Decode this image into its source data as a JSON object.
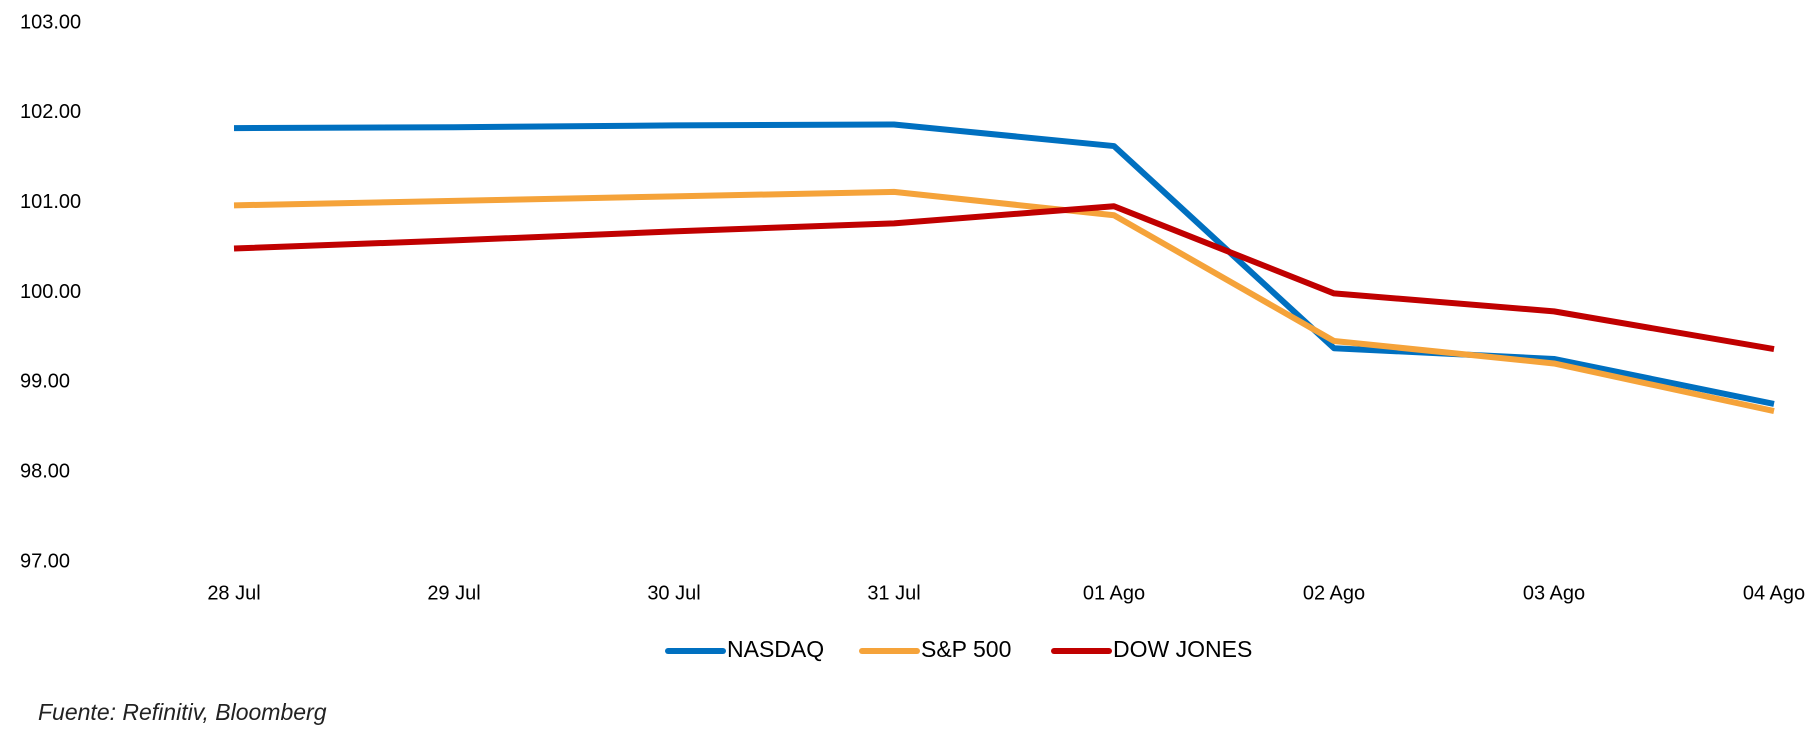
{
  "chart_data": {
    "type": "line",
    "categories": [
      "28 Jul",
      "29 Jul",
      "30 Jul",
      "31 Jul",
      "01 Ago",
      "02 Ago",
      "03 Ago",
      "04 Ago"
    ],
    "series": [
      {
        "name": "NASDAQ",
        "color": "#0070c0",
        "values": [
          101.83,
          101.84,
          101.86,
          101.87,
          101.63,
          99.38,
          99.26,
          98.76
        ]
      },
      {
        "name": "S&P 500",
        "color": "#f5a33a",
        "values": [
          100.97,
          101.02,
          101.07,
          101.12,
          100.86,
          99.46,
          99.21,
          98.68
        ]
      },
      {
        "name": "DOW JONES",
        "color": "#c00000",
        "values": [
          100.49,
          100.58,
          100.68,
          100.77,
          100.96,
          99.99,
          99.79,
          99.37
        ]
      }
    ],
    "ylim": [
      97,
      103
    ],
    "yticks": [
      {
        "value": 97,
        "label": "97.00"
      },
      {
        "value": 98,
        "label": "98.00"
      },
      {
        "value": 99,
        "label": "99.00"
      },
      {
        "value": 100,
        "label": "100.00"
      },
      {
        "value": 101,
        "label": "101.00"
      },
      {
        "value": 102,
        "label": "102.00"
      },
      {
        "value": 103,
        "label": "103.00"
      }
    ],
    "grid": false,
    "source": "Fuente: Refinitiv, Bloomberg"
  }
}
